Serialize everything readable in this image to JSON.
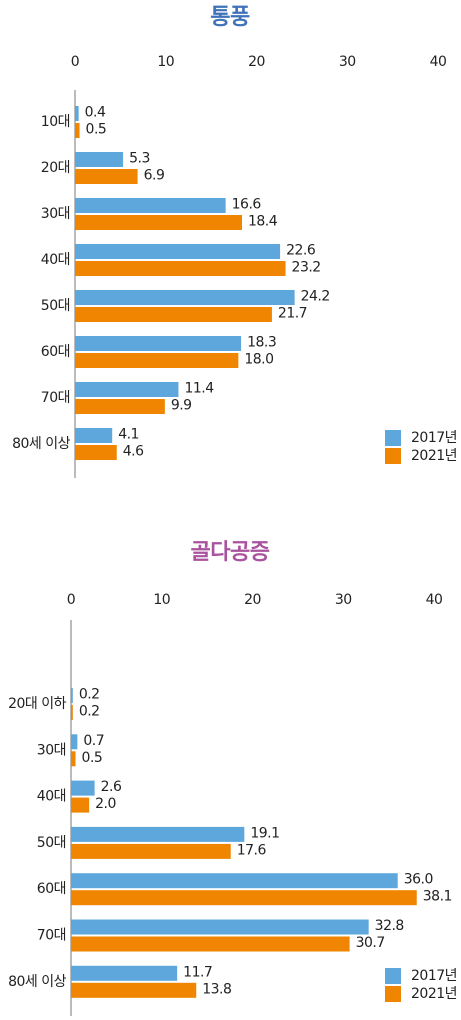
{
  "chart_data": [
    {
      "type": "bar",
      "orientation": "horizontal",
      "title": "통풍",
      "title_color": "#3f72b8",
      "categories": [
        "10대",
        "20대",
        "30대",
        "40대",
        "50대",
        "60대",
        "70대",
        "80세 이상"
      ],
      "series": [
        {
          "name": "2017년",
          "color": "#5ea7dc",
          "values": [
            0.4,
            5.3,
            16.6,
            22.6,
            24.2,
            18.3,
            11.4,
            4.1
          ],
          "value_labels": [
            "0.4",
            "5.3",
            "16.6",
            "22.6",
            "24.2",
            "18.3",
            "11.4",
            "4.1"
          ]
        },
        {
          "name": "2021년",
          "color": "#ef8500",
          "values": [
            0.5,
            6.9,
            18.4,
            23.2,
            21.7,
            18.0,
            9.9,
            4.6
          ],
          "value_labels": [
            "0.5",
            "6.9",
            "18.4",
            "23.2",
            "21.7",
            "18.0",
            "9.9",
            "4.6"
          ]
        }
      ],
      "xlim": [
        0,
        40
      ],
      "xticks": [
        0,
        10,
        20,
        30,
        40
      ],
      "grid": false,
      "legend": "lower right"
    },
    {
      "type": "bar",
      "orientation": "horizontal",
      "title": "골다공증",
      "title_color": "#a9529e",
      "categories": [
        "20대 이하",
        "30대",
        "40대",
        "50대",
        "60대",
        "70대",
        "80세 이상"
      ],
      "series": [
        {
          "name": "2017년",
          "color": "#5ea7dc",
          "values": [
            0.2,
            0.7,
            2.6,
            19.1,
            36.0,
            32.8,
            11.7
          ],
          "value_labels": [
            "0.2",
            "0.7",
            "2.6",
            "19.1",
            "36.0",
            "32.8",
            "11.7"
          ]
        },
        {
          "name": "2021년",
          "color": "#ef8500",
          "values": [
            0.2,
            0.5,
            2.0,
            17.6,
            38.1,
            30.7,
            13.8
          ],
          "value_labels": [
            "0.2",
            "0.5",
            "2.0",
            "17.6",
            "38.1",
            "30.7",
            "13.8"
          ]
        }
      ],
      "xlim": [
        0,
        40
      ],
      "xticks": [
        0,
        10,
        20,
        30,
        40
      ],
      "grid": false,
      "legend": "lower right"
    }
  ]
}
